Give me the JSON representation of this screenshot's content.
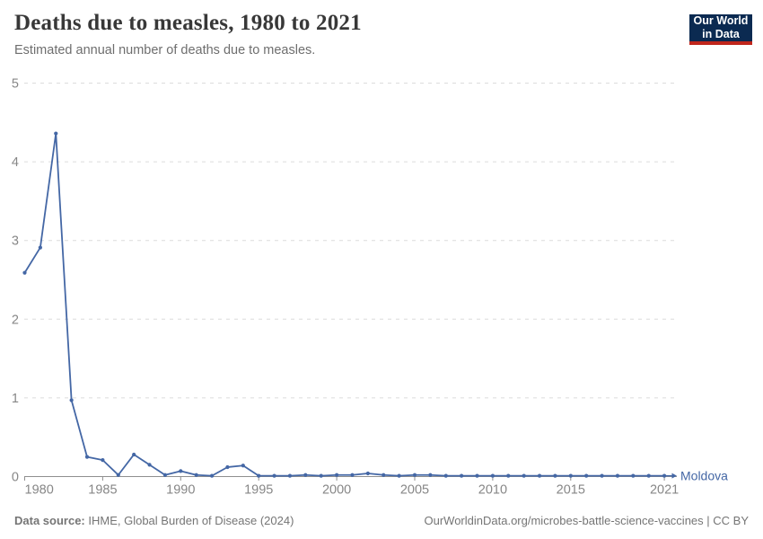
{
  "header": {
    "title": "Deaths due to measles, 1980 to 2021",
    "subtitle": "Estimated annual number of deaths due to measles.",
    "logo": {
      "line1": "Our World",
      "line2": "in Data",
      "bg_color": "#0b2a51",
      "accent_color": "#c0261c"
    }
  },
  "chart_data": {
    "type": "line",
    "title": "Deaths due to measles, 1980 to 2021",
    "subtitle": "Estimated annual number of deaths due to measles.",
    "xlabel": "",
    "ylabel": "",
    "xlim": [
      1980,
      2021
    ],
    "ylim": [
      0,
      5
    ],
    "x_ticks": [
      1980,
      1985,
      1990,
      1995,
      2000,
      2005,
      2010,
      2015,
      2021
    ],
    "y_ticks": [
      0,
      1,
      2,
      3,
      4,
      5
    ],
    "grid": "horizontal-dashed",
    "legend_position": "end-of-line-label",
    "years": [
      1980,
      1981,
      1982,
      1983,
      1984,
      1985,
      1986,
      1987,
      1988,
      1989,
      1990,
      1991,
      1992,
      1993,
      1994,
      1995,
      1996,
      1997,
      1998,
      1999,
      2000,
      2001,
      2002,
      2003,
      2004,
      2005,
      2006,
      2007,
      2008,
      2009,
      2010,
      2011,
      2012,
      2013,
      2014,
      2015,
      2016,
      2017,
      2018,
      2019,
      2020,
      2021
    ],
    "series": [
      {
        "name": "Moldova",
        "color": "#4467a5",
        "values": [
          2.59,
          2.91,
          4.36,
          0.97,
          0.25,
          0.21,
          0.02,
          0.28,
          0.15,
          0.02,
          0.07,
          0.02,
          0.01,
          0.12,
          0.14,
          0.01,
          0.01,
          0.01,
          0.02,
          0.01,
          0.02,
          0.02,
          0.04,
          0.02,
          0.01,
          0.02,
          0.02,
          0.01,
          0.01,
          0.01,
          0.01,
          0.01,
          0.01,
          0.01,
          0.01,
          0.01,
          0.01,
          0.01,
          0.01,
          0.01,
          0.01,
          0.01
        ]
      }
    ],
    "colors": {
      "gridline": "#dcdcdc",
      "axis": "#8f8f8f",
      "tick_label": "#878787"
    }
  },
  "footer": {
    "source_label": "Data source:",
    "source_text": "IHME, Global Burden of Disease (2024)",
    "license_text": "OurWorldinData.org/microbes-battle-science-vaccines | CC BY"
  }
}
